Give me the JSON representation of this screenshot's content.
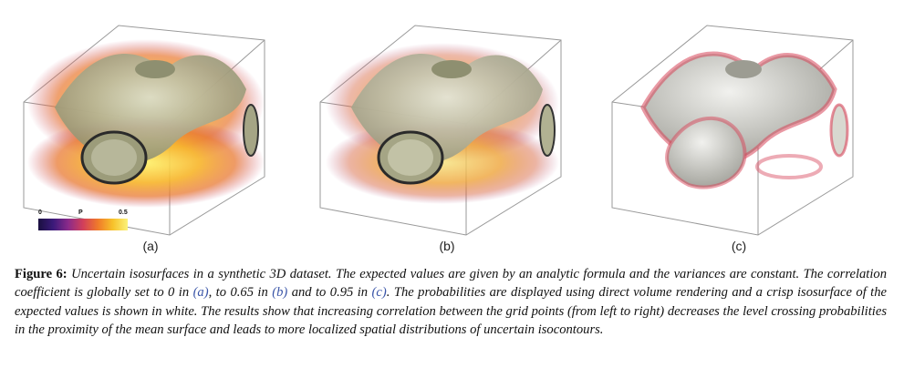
{
  "figure": {
    "panels": [
      {
        "label": "(a)",
        "correlation": 0
      },
      {
        "label": "(b)",
        "correlation": 0.65
      },
      {
        "label": "(c)",
        "correlation": 0.95
      }
    ],
    "colorbar": {
      "min": "0",
      "mid": "P",
      "max": "0.5"
    },
    "caption": {
      "label": "Figure 6:",
      "part1": "Uncertain isosurfaces in a synthetic 3D dataset. The expected values are given by an analytic formula and the variances are constant. The correlation coefficient is globally set to 0 in",
      "ref_a": "(a)",
      "part2": ", to 0.65 in",
      "ref_b": "(b)",
      "part3": "and to 0.95 in",
      "ref_c": "(c)",
      "part4": ". The probabilities are displayed using direct volume rendering and a crisp isosurface of the expected values is shown in white. The results show that increasing correlation between the grid points (from left to right) decreases the level crossing probabilities in the proximity of the mean surface and leads to more localized spatial distributions of uncertain isocontours."
    }
  }
}
